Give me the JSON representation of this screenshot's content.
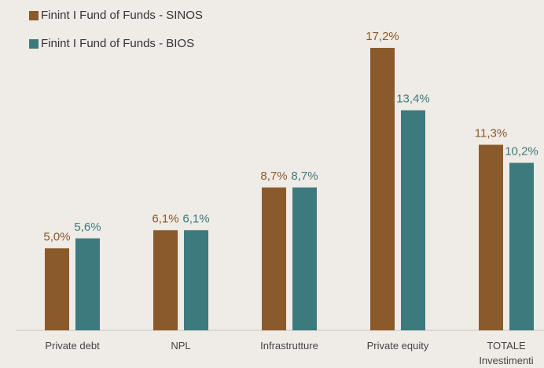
{
  "chart_data": {
    "type": "bar",
    "categories": [
      "Private debt",
      "NPL",
      "Infrastrutture",
      "Private equity",
      "TOTALE Investimenti"
    ],
    "series": [
      {
        "name": "Finint I Fund of Funds - SINOS",
        "color": "#8b5a2b",
        "values": [
          5.0,
          6.1,
          8.7,
          17.2,
          11.3
        ],
        "value_labels": [
          "5,0%",
          "6,1%",
          "8,7%",
          "17,2%",
          "11,3%"
        ]
      },
      {
        "name": "Finint I Fund of Funds - BIOS",
        "color": "#3d7a7e",
        "values": [
          5.6,
          6.1,
          8.7,
          13.4,
          10.2
        ],
        "value_labels": [
          "5,6%",
          "6,1%",
          "8,7%",
          "13,4%",
          "10,2%"
        ]
      }
    ]
  }
}
